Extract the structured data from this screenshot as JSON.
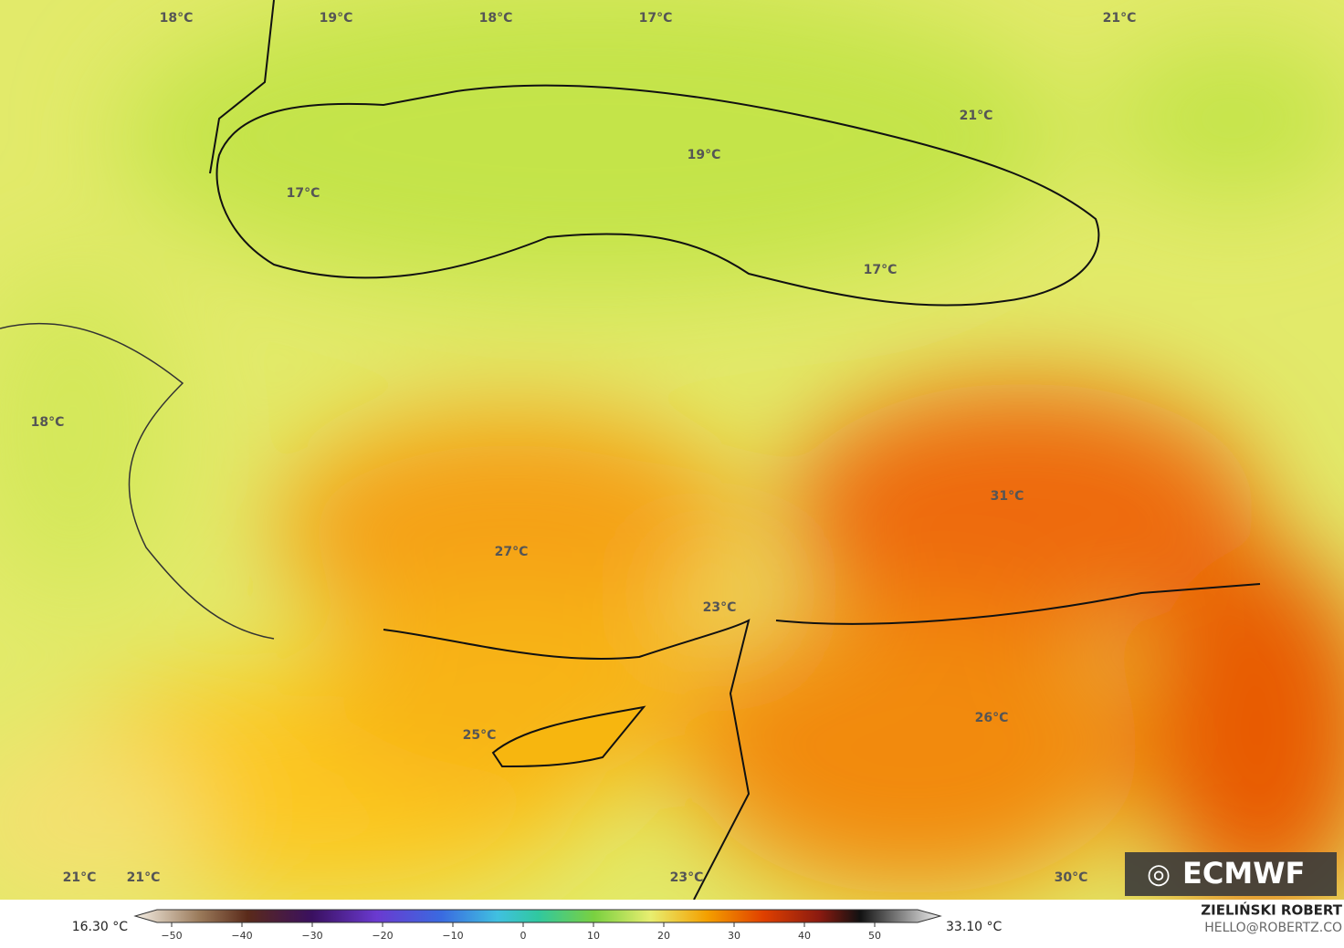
{
  "map_labels": [
    "18°C",
    "19°C",
    "18°C",
    "17°C",
    "21°C",
    "21°C",
    "19°C",
    "17°C",
    "17°C",
    "18°C",
    "31°C",
    "27°C",
    "23°C",
    "25°C",
    "26°C",
    "21°C",
    "21°C",
    "23°C",
    "30°C"
  ],
  "logo": "ECMWF",
  "colorbar": {
    "min_label": "16.30 °C",
    "max_label": "33.10 °C",
    "ticks": [
      {
        "value": -50,
        "label": "−50"
      },
      {
        "value": -40,
        "label": "−40"
      },
      {
        "value": -30,
        "label": "−30"
      },
      {
        "value": -20,
        "label": "−20"
      },
      {
        "value": -10,
        "label": "−10"
      },
      0,
      10,
      20,
      30,
      40,
      50
    ]
  },
  "credit": {
    "name": "ZIELIŃSKI ROBERT",
    "email": "HELLO@ROBERTZ.CO"
  }
}
